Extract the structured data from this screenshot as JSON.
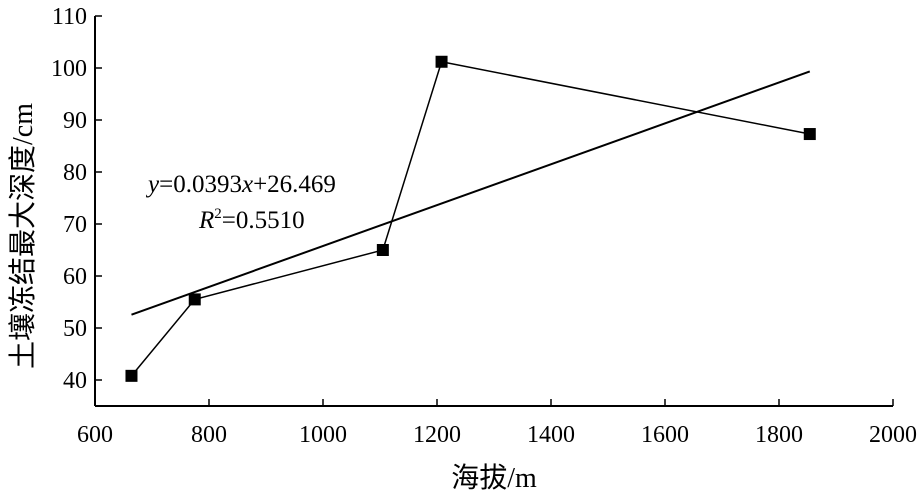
{
  "chart_data": {
    "type": "scatter",
    "xlabel": "海拔/m",
    "ylabel": "土壤冻结最大深度/cm",
    "xlim": [
      600,
      2000
    ],
    "ylim": [
      35,
      110
    ],
    "x_ticks": [
      600,
      800,
      1000,
      1200,
      1400,
      1600,
      1800,
      2000
    ],
    "y_ticks": [
      40,
      50,
      60,
      70,
      80,
      90,
      100,
      110
    ],
    "grid": false,
    "series": [
      {
        "points": [
          {
            "x": 664,
            "y": 40.8
          },
          {
            "x": 775,
            "y": 55.5
          },
          {
            "x": 1105,
            "y": 65.0
          },
          {
            "x": 1208,
            "y": 101.2
          },
          {
            "x": 1854,
            "y": 87.3
          }
        ]
      }
    ],
    "trendline": {
      "slope": 0.0393,
      "intercept": 26.469,
      "x_start": 664,
      "x_end": 1854
    },
    "annotation": {
      "equation": {
        "y": "y",
        "eq1": "=0.0393",
        "x": "x",
        "eq2": "+26.469"
      },
      "r2": {
        "R": "R",
        "sup": "2",
        "rest": "=0.5510"
      }
    },
    "colors": {
      "axis": "#000000",
      "marker": "#000000",
      "line": "#000000"
    }
  }
}
